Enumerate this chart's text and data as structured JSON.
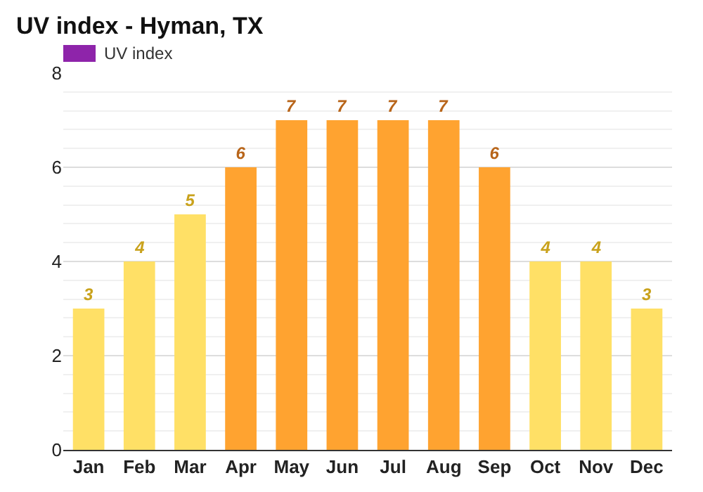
{
  "chart_data": {
    "type": "bar",
    "title": "UV index - Hyman, TX",
    "categories": [
      "Jan",
      "Feb",
      "Mar",
      "Apr",
      "May",
      "Jun",
      "Jul",
      "Aug",
      "Sep",
      "Oct",
      "Nov",
      "Dec"
    ],
    "series": [
      {
        "name": "UV index",
        "color": "#8e24aa",
        "values": [
          3,
          4,
          5,
          6,
          7,
          7,
          7,
          7,
          6,
          4,
          4,
          3
        ],
        "colors": [
          "#ffe066",
          "#ffe066",
          "#ffe066",
          "#ffa330",
          "#ffa330",
          "#ffa330",
          "#ffa330",
          "#ffa330",
          "#ffa330",
          "#ffe066",
          "#ffe066",
          "#ffe066"
        ]
      }
    ],
    "ylim": [
      0,
      8
    ],
    "yticks": [
      0,
      2,
      4,
      6,
      8
    ],
    "grid": true,
    "legend": "top left",
    "data_labels": true
  }
}
